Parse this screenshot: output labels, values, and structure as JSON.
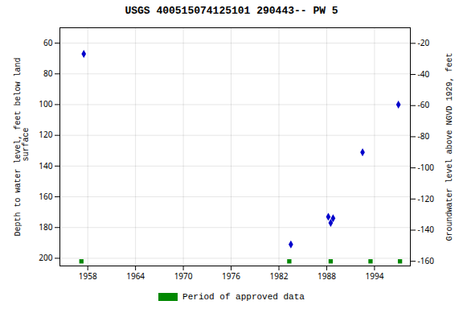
{
  "chart_data": {
    "type": "scatter",
    "title": "USGS 400515074125101 290443-- PW 5",
    "ylabel": "Depth to water level, feet below land\n surface",
    "y2label": "Groundwater level above NGVD 1929, feet",
    "xlim": [
      1954.5,
      1998.5
    ],
    "xticks": [
      1958,
      1964,
      1970,
      1976,
      1982,
      1988,
      1994
    ],
    "ylim": [
      205,
      50
    ],
    "yticks": [
      60,
      80,
      100,
      120,
      140,
      160,
      180,
      200
    ],
    "y2lim": [
      -163,
      -10
    ],
    "y2ticks": [
      -20,
      -40,
      -60,
      -80,
      -100,
      -120,
      -140,
      -160
    ],
    "grid": true,
    "legend": "bottom",
    "series": [
      {
        "color": "#0000cc",
        "marker": "diamond",
        "x": [
          1957.5,
          1997.0,
          1992.5,
          1983.5,
          1988.2,
          1988.5,
          1988.8
        ],
        "values": [
          67,
          100,
          131,
          191,
          173,
          177,
          174
        ]
      },
      {
        "name": "Period of approved data",
        "color": "#008800",
        "marker": "square",
        "x": [
          1957.2,
          1983.3,
          1988.5,
          1993.5,
          1997.2
        ],
        "values": [
          202,
          202,
          202,
          202,
          202
        ]
      }
    ]
  }
}
